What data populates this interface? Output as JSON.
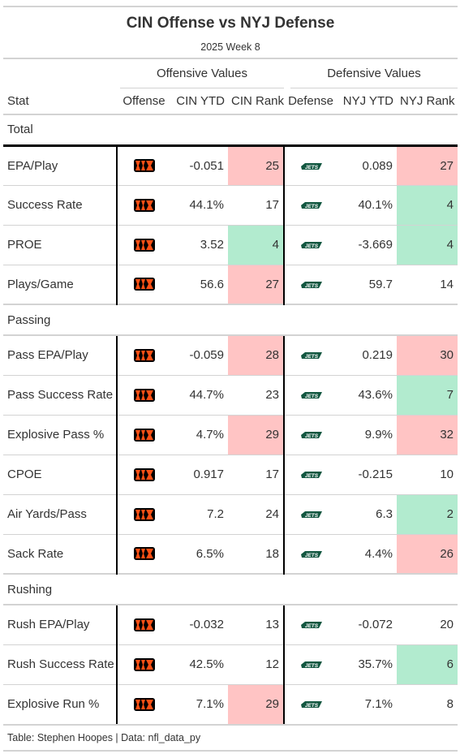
{
  "title": "CIN Offense vs NYJ Defense",
  "subtitle": "2025 Week 8",
  "spanners": {
    "offense": "Offensive Values",
    "defense": "Defensive Values"
  },
  "columns": [
    "Stat",
    "Offense",
    "CIN YTD",
    "CIN Rank",
    "Defense",
    "NYJ YTD",
    "NYJ Rank"
  ],
  "colors": {
    "worse": "#ffc4c4",
    "better": "#b2ebcf",
    "bengals_orange": "#fb4f14",
    "bengals_black": "#000000",
    "jets_green": "#125740"
  },
  "logos": {
    "offense": "bengals-logo-icon",
    "defense": "jets-logo-icon"
  },
  "groups": [
    {
      "name": "Total",
      "rows": [
        {
          "stat": "EPA/Play",
          "cin_ytd": "-0.051",
          "cin_rank": "25",
          "cin_rank_shade": "worse",
          "nyj_ytd": "0.089",
          "nyj_rank": "27",
          "nyj_rank_shade": "worse"
        },
        {
          "stat": "Success Rate",
          "cin_ytd": "44.1%",
          "cin_rank": "17",
          "cin_rank_shade": "",
          "nyj_ytd": "40.1%",
          "nyj_rank": "4",
          "nyj_rank_shade": "better"
        },
        {
          "stat": "PROE",
          "cin_ytd": "3.52",
          "cin_rank": "4",
          "cin_rank_shade": "better",
          "nyj_ytd": "-3.669",
          "nyj_rank": "4",
          "nyj_rank_shade": "better"
        },
        {
          "stat": "Plays/Game",
          "cin_ytd": "56.6",
          "cin_rank": "27",
          "cin_rank_shade": "worse",
          "nyj_ytd": "59.7",
          "nyj_rank": "14",
          "nyj_rank_shade": ""
        }
      ]
    },
    {
      "name": "Passing",
      "rows": [
        {
          "stat": "Pass EPA/Play",
          "cin_ytd": "-0.059",
          "cin_rank": "28",
          "cin_rank_shade": "worse",
          "nyj_ytd": "0.219",
          "nyj_rank": "30",
          "nyj_rank_shade": "worse"
        },
        {
          "stat": "Pass Success Rate",
          "cin_ytd": "44.7%",
          "cin_rank": "23",
          "cin_rank_shade": "",
          "nyj_ytd": "43.6%",
          "nyj_rank": "7",
          "nyj_rank_shade": "better"
        },
        {
          "stat": "Explosive Pass %",
          "cin_ytd": "4.7%",
          "cin_rank": "29",
          "cin_rank_shade": "worse",
          "nyj_ytd": "9.9%",
          "nyj_rank": "32",
          "nyj_rank_shade": "worse"
        },
        {
          "stat": "CPOE",
          "cin_ytd": "0.917",
          "cin_rank": "17",
          "cin_rank_shade": "",
          "nyj_ytd": "-0.215",
          "nyj_rank": "10",
          "nyj_rank_shade": ""
        },
        {
          "stat": "Air Yards/Pass",
          "cin_ytd": "7.2",
          "cin_rank": "24",
          "cin_rank_shade": "",
          "nyj_ytd": "6.3",
          "nyj_rank": "2",
          "nyj_rank_shade": "better"
        },
        {
          "stat": "Sack Rate",
          "cin_ytd": "6.5%",
          "cin_rank": "18",
          "cin_rank_shade": "",
          "nyj_ytd": "4.4%",
          "nyj_rank": "26",
          "nyj_rank_shade": "worse"
        }
      ]
    },
    {
      "name": "Rushing",
      "rows": [
        {
          "stat": "Rush EPA/Play",
          "cin_ytd": "-0.032",
          "cin_rank": "13",
          "cin_rank_shade": "",
          "nyj_ytd": "-0.072",
          "nyj_rank": "20",
          "nyj_rank_shade": ""
        },
        {
          "stat": "Rush Success Rate",
          "cin_ytd": "42.5%",
          "cin_rank": "12",
          "cin_rank_shade": "",
          "nyj_ytd": "35.7%",
          "nyj_rank": "6",
          "nyj_rank_shade": "better"
        },
        {
          "stat": "Explosive Run %",
          "cin_ytd": "7.1%",
          "cin_rank": "29",
          "cin_rank_shade": "worse",
          "nyj_ytd": "7.1%",
          "nyj_rank": "8",
          "nyj_rank_shade": ""
        }
      ]
    }
  ],
  "footer": "Table: Stephen Hoopes | Data: nfl_data_py"
}
